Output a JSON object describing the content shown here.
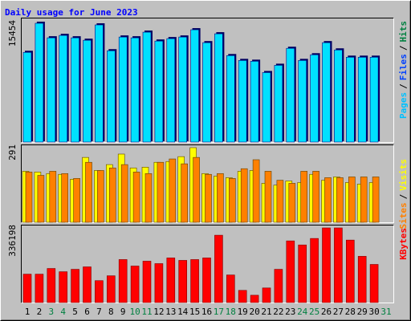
{
  "chart_data": [
    {
      "type": "bar",
      "title": "Daily usage for June 2023",
      "legend": [
        {
          "name": "Pages",
          "color": "#00c0ff"
        },
        {
          "name": "Files",
          "color": "#0040ff"
        },
        {
          "name": "Hits",
          "color": "#008040"
        }
      ],
      "separator": "/",
      "color": "#00e0ff",
      "values": [
        11669,
        15454,
        13562,
        13877,
        13562,
        13246,
        15244,
        11880,
        13667,
        13562,
        14298,
        13141,
        13457,
        13667,
        14613,
        12931,
        14087,
        11249,
        10618,
        10513,
        9041,
        9987,
        12195,
        10618,
        11354,
        12931,
        11985,
        11038,
        11038,
        11038,
        null
      ],
      "ylim": [
        0,
        15454
      ],
      "yticks": [
        15454
      ]
    },
    {
      "type": "grouped-bar",
      "series": [
        {
          "name": "Sites",
          "color": "#ff8000",
          "values": [
            196,
            183,
            199,
            190,
            171,
            234,
            202,
            212,
            225,
            196,
            190,
            234,
            247,
            228,
            253,
            187,
            190,
            171,
            209,
            244,
            199,
            164,
            152,
            199,
            199,
            174,
            174,
            177,
            177,
            177,
            null
          ]
        },
        {
          "name": "Visits",
          "color": "#ffff00",
          "values": [
            199,
            196,
            190,
            187,
            168,
            253,
            202,
            225,
            266,
            212,
            215,
            234,
            237,
            256,
            291,
            190,
            180,
            174,
            199,
            202,
            152,
            145,
            161,
            155,
            187,
            164,
            177,
            155,
            149,
            155,
            null
          ]
        }
      ],
      "separator": "/",
      "ylim": [
        0,
        291
      ],
      "yticks": [
        291
      ]
    },
    {
      "type": "bar",
      "legend": [
        {
          "name": "KBytes",
          "color": "#ff0000"
        }
      ],
      "color": "#ff0000",
      "values": [
        127900,
        127900,
        153475,
        138860,
        149800,
        160800,
        98660,
        120600,
        193680,
        164440,
        186370,
        175400,
        201000,
        190000,
        193680,
        201000,
        303300,
        124250,
        54800,
        32900,
        65800,
        149800,
        277700,
        259450,
        288700,
        336198,
        336198,
        281400,
        208300,
        171750,
        null
      ],
      "ylim": [
        0,
        336198
      ],
      "yticks": [
        336198
      ],
      "categories": [
        "1",
        "2",
        "3",
        "4",
        "5",
        "6",
        "7",
        "8",
        "9",
        "10",
        "11",
        "12",
        "13",
        "14",
        "15",
        "16",
        "17",
        "18",
        "19",
        "20",
        "21",
        "22",
        "23",
        "24",
        "25",
        "26",
        "27",
        "28",
        "29",
        "30",
        "31"
      ],
      "category_color": "#000000",
      "weekend_color": "#008040",
      "weekend_categories": [
        "3",
        "4",
        "10",
        "11",
        "17",
        "18",
        "24",
        "25",
        "31"
      ]
    }
  ]
}
